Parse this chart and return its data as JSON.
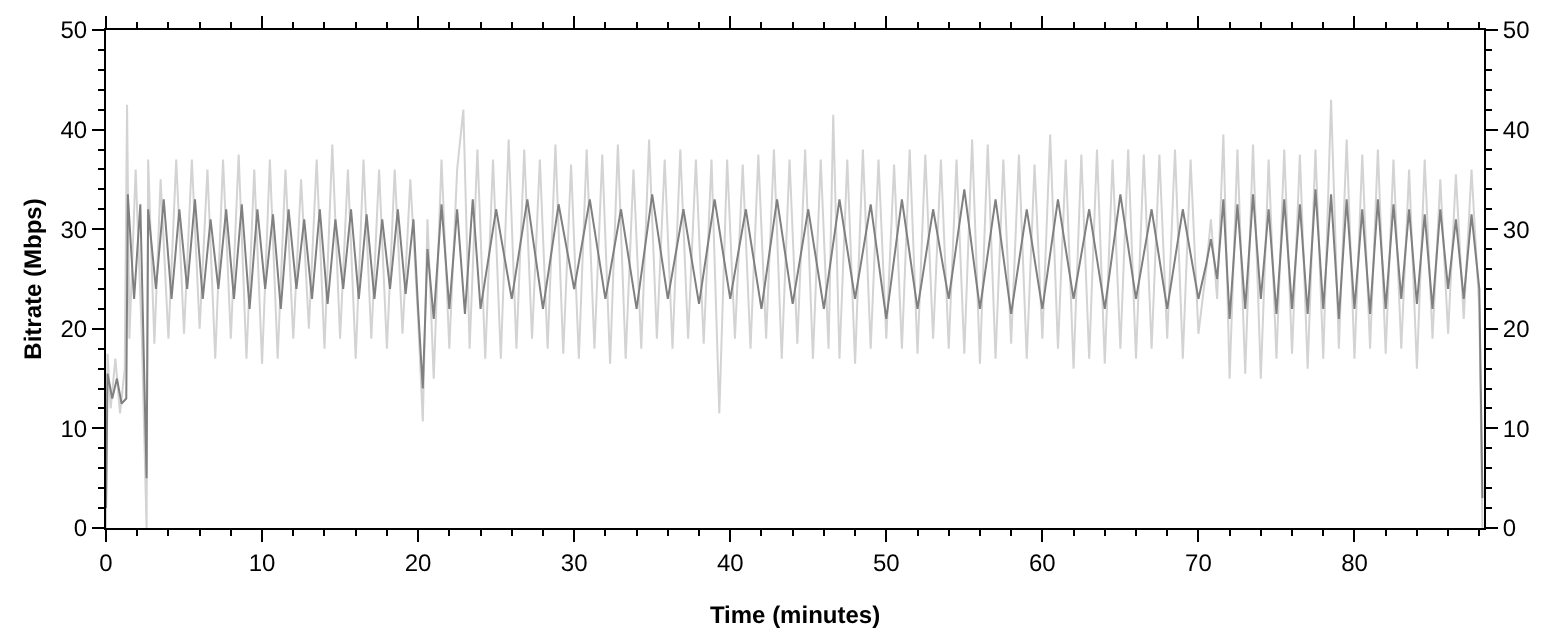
{
  "chart_data": {
    "type": "line",
    "xlabel": "Time (minutes)",
    "ylabel": "Bitrate (Mbps)",
    "xlim": [
      0,
      88.3
    ],
    "xticks": [
      0,
      {
        "value": 2,
        "label": null
      },
      {
        "value": 4,
        "label": null
      },
      {
        "value": 6,
        "label": null
      },
      {
        "value": 8,
        "label": null
      },
      10,
      {
        "value": 12,
        "label": null
      },
      {
        "value": 14,
        "label": null
      },
      {
        "value": 16,
        "label": null
      },
      {
        "value": 18,
        "label": null
      },
      20,
      {
        "value": 22,
        "label": null
      },
      {
        "value": 24,
        "label": null
      },
      {
        "value": 26,
        "label": null
      },
      {
        "value": 28,
        "label": null
      },
      30,
      {
        "value": 32,
        "label": null
      },
      {
        "value": 34,
        "label": null
      },
      {
        "value": 36,
        "label": null
      },
      {
        "value": 38,
        "label": null
      },
      40,
      {
        "value": 42,
        "label": null
      },
      {
        "value": 44,
        "label": null
      },
      {
        "value": 46,
        "label": null
      },
      {
        "value": 48,
        "label": null
      },
      50,
      {
        "value": 52,
        "label": null
      },
      {
        "value": 54,
        "label": null
      },
      {
        "value": 56,
        "label": null
      },
      {
        "value": 58,
        "label": null
      },
      60,
      {
        "value": 62,
        "label": null
      },
      {
        "value": 64,
        "label": null
      },
      {
        "value": 66,
        "label": null
      },
      {
        "value": 68,
        "label": null
      },
      70,
      {
        "value": 72,
        "label": null
      },
      {
        "value": 74,
        "label": null
      },
      {
        "value": 76,
        "label": null
      },
      {
        "value": 78,
        "label": null
      },
      80,
      {
        "value": 82,
        "label": null
      },
      {
        "value": 84,
        "label": null
      },
      {
        "value": 86,
        "label": null
      },
      {
        "value": 88,
        "label": null
      }
    ],
    "ylim": [
      0,
      50
    ],
    "yticks": [
      0,
      {
        "value": 2,
        "label": null
      },
      {
        "value": 4,
        "label": null
      },
      {
        "value": 6,
        "label": null
      },
      {
        "value": 8,
        "label": null
      },
      10,
      {
        "value": 12,
        "label": null
      },
      {
        "value": 14,
        "label": null
      },
      {
        "value": 16,
        "label": null
      },
      {
        "value": 18,
        "label": null
      },
      20,
      {
        "value": 22,
        "label": null
      },
      {
        "value": 24,
        "label": null
      },
      {
        "value": 26,
        "label": null
      },
      {
        "value": 28,
        "label": null
      },
      30,
      {
        "value": 32,
        "label": null
      },
      {
        "value": 34,
        "label": null
      },
      {
        "value": 36,
        "label": null
      },
      {
        "value": 38,
        "label": null
      },
      40,
      {
        "value": 42,
        "label": null
      },
      {
        "value": 44,
        "label": null
      },
      {
        "value": 46,
        "label": null
      },
      {
        "value": 48,
        "label": null
      },
      50
    ],
    "y2lim": [
      0,
      50
    ],
    "y2ticks": [
      0,
      {
        "value": 2,
        "label": null
      },
      {
        "value": 4,
        "label": null
      },
      {
        "value": 6,
        "label": null
      },
      {
        "value": 8,
        "label": null
      },
      10,
      {
        "value": 12,
        "label": null
      },
      {
        "value": 14,
        "label": null
      },
      {
        "value": 16,
        "label": null
      },
      {
        "value": 18,
        "label": null
      },
      20,
      {
        "value": 22,
        "label": null
      },
      {
        "value": 24,
        "label": null
      },
      {
        "value": 26,
        "label": null
      },
      {
        "value": 28,
        "label": null
      },
      30,
      {
        "value": 32,
        "label": null
      },
      {
        "value": 34,
        "label": null
      },
      {
        "value": 36,
        "label": null
      },
      {
        "value": 38,
        "label": null
      },
      40,
      {
        "value": 42,
        "label": null
      },
      {
        "value": 44,
        "label": null
      },
      {
        "value": 46,
        "label": null
      },
      {
        "value": 48,
        "label": null
      },
      50
    ],
    "grid": false,
    "marker": "none",
    "line_style": "solid",
    "series": [
      {
        "color": "#d3d3d3",
        "x": [
          0,
          0.1,
          0.3,
          0.6,
          0.9,
          1.2,
          1.35,
          1.5,
          1.9,
          2.3,
          2.6,
          2.7,
          3.1,
          3.5,
          4.0,
          4.5,
          5.0,
          5.5,
          6.0,
          6.5,
          7.0,
          7.5,
          8.0,
          8.5,
          9.0,
          9.5,
          10.0,
          10.5,
          11.0,
          11.5,
          12.0,
          12.5,
          13.0,
          13.5,
          14.0,
          14.5,
          15.0,
          15.5,
          16.0,
          16.5,
          17.0,
          17.5,
          18.0,
          18.5,
          19.0,
          19.5,
          20.0,
          20.3,
          20.6,
          21.0,
          21.5,
          22.0,
          22.5,
          22.9,
          23.3,
          23.8,
          24.3,
          24.8,
          25.3,
          25.8,
          26.3,
          26.8,
          27.3,
          27.8,
          28.3,
          28.8,
          29.3,
          29.8,
          30.3,
          30.8,
          31.3,
          31.8,
          32.3,
          32.8,
          33.3,
          33.8,
          34.3,
          34.8,
          35.3,
          35.8,
          36.3,
          36.8,
          37.3,
          37.8,
          38.3,
          38.8,
          39.3,
          39.8,
          40.3,
          40.8,
          41.3,
          41.8,
          42.3,
          42.8,
          43.3,
          43.8,
          44.3,
          44.8,
          45.3,
          45.8,
          46.3,
          46.6,
          47.0,
          47.5,
          48.0,
          48.5,
          49.0,
          49.5,
          50.0,
          50.5,
          51.0,
          51.5,
          52.0,
          52.5,
          53.0,
          53.5,
          54.0,
          54.5,
          55.0,
          55.5,
          56.0,
          56.5,
          57.0,
          57.5,
          58.0,
          58.5,
          59.0,
          59.5,
          60.0,
          60.5,
          61.0,
          61.5,
          62.0,
          62.5,
          63.0,
          63.5,
          64.0,
          64.5,
          65.0,
          65.5,
          66.0,
          66.5,
          67.0,
          67.5,
          68.0,
          68.5,
          69.0,
          69.5,
          70.0,
          70.5,
          70.8,
          71.2,
          71.6,
          72.0,
          72.5,
          73.0,
          73.5,
          74.0,
          74.5,
          75.0,
          75.5,
          76.0,
          76.5,
          77.0,
          77.5,
          78.0,
          78.5,
          79.0,
          79.5,
          80.0,
          80.5,
          81.0,
          81.5,
          82.0,
          82.5,
          83.0,
          83.5,
          84.0,
          84.5,
          85.0,
          85.5,
          86.0,
          86.5,
          87.0,
          87.5,
          88.0,
          88.2
        ],
        "values": [
          0,
          17.5,
          12,
          17,
          11.5,
          16,
          42.5,
          19,
          36,
          19,
          0,
          37,
          18.5,
          35,
          19,
          37,
          19.5,
          37,
          20,
          36,
          17,
          37,
          19,
          37.5,
          17,
          36,
          16.5,
          37,
          17,
          36,
          19,
          35,
          20,
          37,
          18,
          38.5,
          19,
          36,
          17,
          37,
          19,
          36,
          18,
          36,
          19.5,
          35,
          21,
          10.7,
          31,
          15,
          37,
          18,
          36,
          42,
          18,
          38,
          17,
          37,
          17,
          39,
          18,
          38,
          19,
          37,
          18,
          38.5,
          17.5,
          36.5,
          17,
          38,
          18,
          37.5,
          16.5,
          38.5,
          17,
          36,
          18,
          39,
          19,
          37,
          18,
          38,
          19,
          37,
          18.5,
          37,
          11.5,
          37,
          19,
          36.5,
          18,
          37.5,
          19,
          38,
          17,
          37,
          18.5,
          38,
          17,
          37,
          18,
          41.5,
          17,
          37,
          16.5,
          38,
          18,
          37,
          19,
          36.5,
          18,
          38,
          17.5,
          37.5,
          19,
          37,
          18,
          37,
          17.5,
          39,
          16.5,
          38.5,
          17,
          37,
          18.5,
          37.5,
          17,
          36.5,
          19,
          39.5,
          18,
          37,
          16,
          37.5,
          17,
          38,
          16.5,
          37,
          18,
          38,
          17,
          37.5,
          18,
          37.5,
          19,
          38,
          17,
          37,
          19.5,
          26,
          31,
          23,
          39.5,
          15,
          38,
          15.5,
          38.5,
          15,
          37,
          17,
          38,
          17.5,
          37.5,
          16,
          38,
          17,
          43,
          18,
          39,
          17,
          37.5,
          18,
          38,
          17.5,
          37,
          18,
          36,
          16,
          37,
          19,
          35,
          19.5,
          35.5,
          21,
          36,
          22,
          0
        ]
      },
      {
        "color": "#808080",
        "x": [
          0,
          0.1,
          0.4,
          0.7,
          1.0,
          1.3,
          1.4,
          1.8,
          2.2,
          2.6,
          2.7,
          3.2,
          3.7,
          4.2,
          4.7,
          5.2,
          5.7,
          6.2,
          6.7,
          7.2,
          7.7,
          8.2,
          8.7,
          9.2,
          9.7,
          10.2,
          10.7,
          11.2,
          11.7,
          12.2,
          12.7,
          13.2,
          13.7,
          14.2,
          14.7,
          15.2,
          15.7,
          16.2,
          16.7,
          17.2,
          17.7,
          18.2,
          18.7,
          19.2,
          19.7,
          20.0,
          20.3,
          20.6,
          21.0,
          21.5,
          22.0,
          22.5,
          23.0,
          23.5,
          24.0,
          25.0,
          26.0,
          27.0,
          28.0,
          29.0,
          30.0,
          31.0,
          32.0,
          33.0,
          34.0,
          35.0,
          36.0,
          37.0,
          38.0,
          39.0,
          40.0,
          41.0,
          42.0,
          43.0,
          44.0,
          45.0,
          46.0,
          47.0,
          48.0,
          49.0,
          50.0,
          51.0,
          52.0,
          53.0,
          54.0,
          55.0,
          56.0,
          57.0,
          58.0,
          59.0,
          60.0,
          61.0,
          62.0,
          63.0,
          64.0,
          65.0,
          66.0,
          67.0,
          68.0,
          69.0,
          70.0,
          70.5,
          70.8,
          71.2,
          71.6,
          72.0,
          72.5,
          73.0,
          73.5,
          74.0,
          74.5,
          75.0,
          75.5,
          76.0,
          76.5,
          77.0,
          77.5,
          78.0,
          78.5,
          79.0,
          79.5,
          80.0,
          80.5,
          81.0,
          81.5,
          82.0,
          82.5,
          83.0,
          83.5,
          84.0,
          84.5,
          85.0,
          85.5,
          86.0,
          86.5,
          87.0,
          87.5,
          88.0,
          88.2
        ],
        "values": [
          2,
          15.5,
          13,
          15,
          12.5,
          13,
          33.5,
          23,
          32.5,
          5,
          32,
          24,
          33,
          23,
          32,
          24,
          33,
          23,
          31,
          24,
          32,
          23,
          32.5,
          22,
          32,
          24,
          31.5,
          22,
          32,
          24,
          31,
          23,
          32,
          22.5,
          31,
          24,
          32,
          23,
          31.5,
          23,
          31,
          24,
          32,
          23.5,
          31,
          22,
          14,
          28,
          21,
          32.5,
          22,
          32,
          21.5,
          33,
          22,
          32,
          23,
          33,
          22,
          32.5,
          24,
          33,
          23,
          32,
          22,
          33.5,
          23,
          32,
          22.5,
          33,
          23,
          32,
          22,
          33,
          22.5,
          32,
          22,
          33,
          23,
          32.5,
          21,
          33,
          22,
          32,
          23,
          34,
          22,
          33,
          21.5,
          32,
          22,
          33,
          23,
          32,
          22,
          33.5,
          23,
          32,
          22,
          32,
          23,
          26.5,
          29,
          25,
          33,
          21,
          32.5,
          22,
          33.5,
          23,
          32,
          21.5,
          33,
          22,
          32.5,
          21.5,
          34,
          22,
          33.5,
          21,
          33,
          22,
          32,
          21.5,
          33,
          22,
          32.5,
          23,
          32,
          22.5,
          31.5,
          22,
          32,
          24,
          31,
          23,
          31.5,
          24,
          3
        ]
      }
    ]
  }
}
